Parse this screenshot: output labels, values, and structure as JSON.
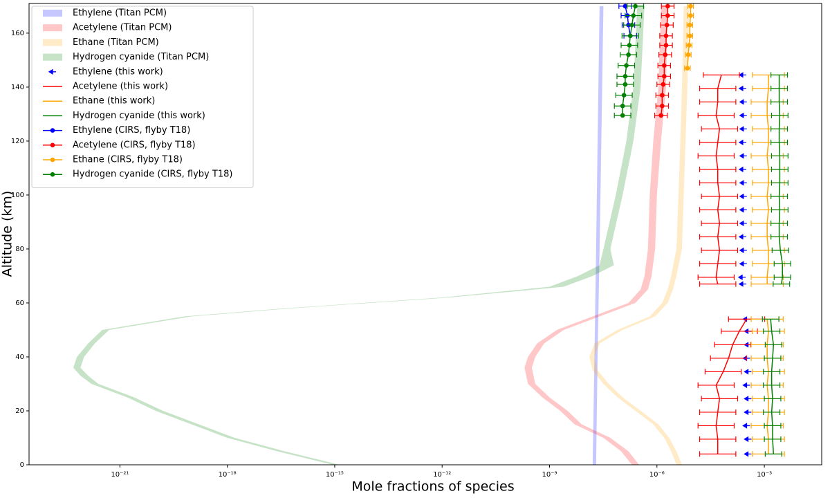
{
  "chart_data": {
    "type": "profile",
    "xlabel": "Mole fractions of species",
    "ylabel": "Altitude (km)",
    "xlog": true,
    "xlim": [
      2.9e-24,
      0.04
    ],
    "ylim": [
      0,
      171
    ],
    "xticks": [
      {
        "value": 1e-21,
        "label": "10⁻²¹"
      },
      {
        "value": 1e-18,
        "label": "10⁻¹⁸"
      },
      {
        "value": 1e-15,
        "label": "10⁻¹⁵"
      },
      {
        "value": 1e-12,
        "label": "10⁻¹²"
      },
      {
        "value": 1e-09,
        "label": "10⁻⁹"
      },
      {
        "value": 1e-06,
        "label": "10⁻⁶"
      },
      {
        "value": 0.001,
        "label": "10⁻³"
      }
    ],
    "yticks": [
      0,
      20,
      40,
      60,
      80,
      100,
      120,
      140,
      160
    ],
    "legend": "upper left",
    "series": [
      {
        "name": "Ethylene (Titan PCM)",
        "kind": "band",
        "color": "#0000ff",
        "y": [
          0,
          40,
          80,
          120,
          170
        ],
        "x_low": [
          1.6e-08,
          1.8e-08,
          2e-08,
          2.2e-08,
          2.5e-08
        ],
        "x_high": [
          2e-08,
          2.2e-08,
          2.5e-08,
          2.8e-08,
          3.2e-08
        ]
      },
      {
        "name": "Acetylene (Titan PCM)",
        "kind": "band",
        "color": "#ff0000",
        "y": [
          0,
          5,
          10,
          15,
          20,
          25,
          30,
          36,
          40,
          45,
          50,
          55,
          60,
          65,
          70,
          80,
          100,
          120,
          140,
          170
        ],
        "x_low": [
          2e-07,
          1e-07,
          3.2e-08,
          5e-09,
          2e-09,
          6.3e-10,
          2.5e-10,
          2e-10,
          2.5e-10,
          4.5e-10,
          1.6e-09,
          1.6e-08,
          1.6e-07,
          3.5e-07,
          4.5e-07,
          5.6e-07,
          6.3e-07,
          7.9e-07,
          1.1e-06,
          1.3e-06
        ],
        "x_high": [
          3.2e-07,
          1.6e-07,
          5e-08,
          7.9e-09,
          3.2e-09,
          1e-09,
          4e-10,
          3.2e-10,
          4e-10,
          7.1e-10,
          2.5e-09,
          2.5e-08,
          2.5e-07,
          5.6e-07,
          7.1e-07,
          8.9e-07,
          1e-06,
          1.3e-06,
          1.8e-06,
          2e-06
        ]
      },
      {
        "name": "Ethane (Titan PCM)",
        "kind": "band",
        "color": "#ffa500",
        "y": [
          0,
          5,
          10,
          15,
          20,
          25,
          30,
          35,
          40,
          45,
          50,
          55,
          60,
          65,
          70,
          80,
          100,
          120,
          140,
          170
        ],
        "x_low": [
          3.5e-06,
          2.5e-06,
          1.6e-06,
          7.9e-07,
          2.5e-07,
          7.9e-08,
          3.2e-08,
          1.6e-08,
          1.3e-08,
          1.8e-08,
          7.9e-08,
          6.3e-07,
          1.4e-06,
          2e-06,
          2.5e-06,
          3.5e-06,
          4e-06,
          4.5e-06,
          5e-06,
          5.6e-06
        ],
        "x_high": [
          5e-06,
          3.5e-06,
          2.2e-06,
          1.1e-06,
          3.5e-07,
          1.1e-07,
          4.5e-08,
          2.2e-08,
          1.8e-08,
          2.5e-08,
          1.1e-07,
          8.9e-07,
          2e-06,
          2.8e-06,
          3.5e-06,
          5e-06,
          5.6e-06,
          6.3e-06,
          7.1e-06,
          7.9e-06
        ]
      },
      {
        "name": "Hydrogen cyanide (Titan PCM)",
        "kind": "band",
        "color": "#008000",
        "y": [
          0,
          5,
          10,
          15,
          20,
          25,
          30,
          33,
          36,
          40,
          45,
          50,
          55,
          58,
          62,
          66,
          70,
          74,
          80,
          100,
          120,
          140,
          170
        ],
        "x_low": [
          8.9e-16,
          2.5e-17,
          1e-18,
          1e-19,
          1e-20,
          1.6e-21,
          1.6e-22,
          7.9e-23,
          5e-23,
          6.3e-23,
          1.3e-22,
          3.2e-22,
          6.3e-20,
          4e-17,
          1e-12,
          1e-09,
          6.3e-09,
          2.5e-08,
          3.2e-08,
          7.1e-08,
          1.4e-07,
          2.2e-07,
          2.8e-07
        ],
        "x_high": [
          1.4e-15,
          4e-17,
          1.6e-18,
          1.6e-19,
          1.6e-20,
          2.5e-21,
          2.5e-22,
          1.3e-22,
          7.9e-23,
          1e-22,
          2e-22,
          5e-22,
          1e-19,
          6.3e-17,
          1.6e-12,
          2.5e-09,
          1.6e-08,
          6.3e-08,
          5e-08,
          1.1e-07,
          2.2e-07,
          3.5e-07,
          4.5e-07
        ]
      },
      {
        "name": "Ethylene (this work)",
        "kind": "profile",
        "color": "#0000ff",
        "line": false,
        "marker": "arrow",
        "y": [
          4,
          9.5,
          14.5,
          19.5,
          24.5,
          29.5,
          34.5,
          39.5,
          44.5,
          49.5,
          54,
          null,
          67,
          69.5,
          74.5,
          79.5,
          84.5,
          89.5,
          94.5,
          99.5,
          104.5,
          109.5,
          114.5,
          119.5,
          124.5,
          129.5,
          134.5,
          139.5,
          144.5
        ],
        "x": [
          0.00035,
          0.00035,
          0.00032,
          0.00035,
          0.00035,
          0.00032,
          0.00035,
          0.00032,
          0.00035,
          0.00035,
          0.00032,
          null,
          0.00025,
          0.00024,
          0.00026,
          0.00026,
          0.00025,
          0.00026,
          0.00026,
          0.00026,
          0.00026,
          0.00025,
          0.00026,
          0.00025,
          0.00026,
          0.00026,
          0.00026,
          0.00025,
          0.00025
        ]
      },
      {
        "name": "Acetylene (this work)",
        "kind": "profile",
        "color": "#ff0000",
        "line": true,
        "x_error_factor": 3.2,
        "y": [
          4,
          9.5,
          14.5,
          19.5,
          24.5,
          29.5,
          34.5,
          39.5,
          44.5,
          49.5,
          54,
          null,
          67,
          69.5,
          74.5,
          79.5,
          84.5,
          89.5,
          94.5,
          99.5,
          104.5,
          109.5,
          114.5,
          119.5,
          124.5,
          129.5,
          134.5,
          139.5,
          144.5
        ],
        "x": [
          5e-05,
          5e-05,
          4.5e-05,
          5e-05,
          5.6e-05,
          4.5e-05,
          7.1e-05,
          0.0001,
          0.00013,
          0.0002,
          0.00032,
          null,
          5e-05,
          4.5e-05,
          5e-05,
          5.6e-05,
          5e-05,
          5.6e-05,
          5e-05,
          5.6e-05,
          5e-05,
          5e-05,
          4.5e-05,
          5e-05,
          5.6e-05,
          4.5e-05,
          5e-05,
          5e-05,
          6.3e-05
        ]
      },
      {
        "name": "Ethane (this work)",
        "kind": "profile",
        "color": "#ffa500",
        "line": true,
        "x_error_factor": 2.8,
        "y": [
          4,
          9.5,
          14.5,
          19.5,
          24.5,
          29.5,
          34.5,
          39.5,
          44.5,
          49.5,
          54,
          null,
          67,
          69.5,
          74.5,
          79.5,
          84.5,
          89.5,
          94.5,
          99.5,
          104.5,
          109.5,
          114.5,
          119.5,
          124.5,
          129.5,
          134.5,
          139.5,
          144.5
        ],
        "x": [
          0.0013,
          0.0013,
          0.0012,
          0.0013,
          0.0013,
          0.0012,
          0.0013,
          0.0012,
          0.0012,
          0.0013,
          0.0012,
          null,
          0.0012,
          0.0012,
          0.0013,
          0.0013,
          0.0012,
          0.0012,
          0.0013,
          0.0012,
          0.0013,
          0.0013,
          0.0012,
          0.0013,
          0.0013,
          0.0012,
          0.0012,
          0.0013,
          0.0013
        ]
      },
      {
        "name": "Hydrogen cyanide (this work)",
        "kind": "profile",
        "color": "#008000",
        "line": true,
        "x_error_factor": 1.7,
        "y": [
          4,
          9.5,
          14.5,
          19.5,
          24.5,
          29.5,
          34.5,
          39.5,
          44.5,
          49.5,
          54,
          null,
          67,
          69.5,
          74.5,
          79.5,
          84.5,
          89.5,
          94.5,
          99.5,
          104.5,
          109.5,
          114.5,
          119.5,
          124.5,
          129.5,
          134.5,
          139.5,
          144.5
        ],
        "x": [
          0.0018,
          0.0017,
          0.0017,
          0.0016,
          0.0017,
          0.0016,
          0.0016,
          0.0017,
          0.0018,
          0.0016,
          0.0015,
          null,
          0.003,
          0.0032,
          0.0032,
          0.0028,
          0.0026,
          0.0026,
          0.0027,
          0.0026,
          0.0027,
          0.0027,
          0.0027,
          0.0026,
          0.0026,
          0.0027,
          0.0026,
          0.0026,
          0.0026
        ]
      },
      {
        "name": "Ethylene (CIRS, flyby T18)",
        "kind": "profile",
        "color": "#0000ff",
        "line": true,
        "marker": "dot",
        "x_error_factor": 1.5,
        "y": [
          159,
          163,
          166.5,
          170
        ],
        "x": [
          1.8e-07,
          1.6e-07,
          1.5e-07,
          1.3e-07
        ]
      },
      {
        "name": "Acetylene (CIRS, flyby T18)",
        "kind": "profile",
        "color": "#ff0000",
        "line": true,
        "marker": "dot",
        "x_error_factor": 1.5,
        "y": [
          129.5,
          133,
          137,
          141,
          144,
          148,
          152,
          155.5,
          159,
          163,
          166.5,
          170
        ],
        "x": [
          1.3e-06,
          1.4e-06,
          1.4e-06,
          1.5e-06,
          1.6e-06,
          1.6e-06,
          1.7e-06,
          1.8e-06,
          1.8e-06,
          1.9e-06,
          2e-06,
          2e-06
        ]
      },
      {
        "name": "Ethane (CIRS, flyby T18)",
        "kind": "profile",
        "color": "#ffa500",
        "line": true,
        "marker": "dot",
        "x_error_factor": 1.2,
        "y": [
          147,
          152,
          155.5,
          159,
          163,
          166.5,
          170
        ],
        "x": [
          7.1e-06,
          7.5e-06,
          7.9e-06,
          8.3e-06,
          8.3e-06,
          8.7e-06,
          8.7e-06
        ]
      },
      {
        "name": "Hydrogen cyanide (CIRS, flyby T18)",
        "kind": "profile",
        "color": "#008000",
        "line": true,
        "marker": "dot",
        "x_error_factor": 1.7,
        "y": [
          129.5,
          133,
          137,
          141,
          144,
          148,
          152,
          155.5,
          159,
          163,
          166.5,
          170
        ],
        "x": [
          1.1e-07,
          1.1e-07,
          1.2e-07,
          1.3e-07,
          1.3e-07,
          1.4e-07,
          1.6e-07,
          1.7e-07,
          1.8e-07,
          2e-07,
          2.2e-07,
          2.5e-07
        ]
      }
    ]
  }
}
